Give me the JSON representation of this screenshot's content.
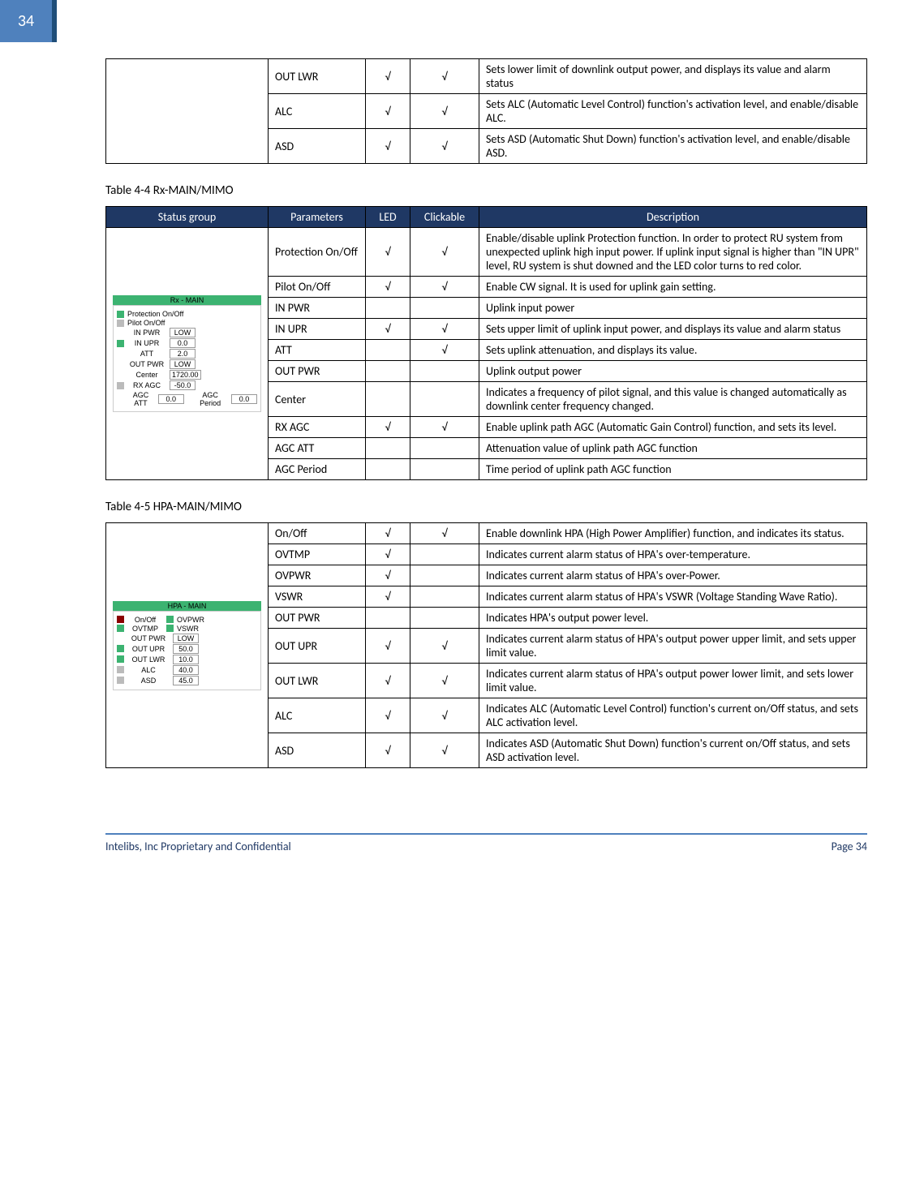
{
  "page_number": "34",
  "top_table_rows": [
    {
      "param": "OUT LWR",
      "led": "√",
      "click": "√",
      "desc": "Sets lower limit of downlink output power, and displays its value and alarm status"
    },
    {
      "param": "ALC",
      "led": "√",
      "click": "√",
      "desc": "Sets ALC (Automatic Level Control) function's activation level, and enable/disable ALC."
    },
    {
      "param": "ASD",
      "led": "√",
      "click": "√",
      "desc": "Sets ASD (Automatic Shut Down) function's activation level, and enable/disable ASD."
    }
  ],
  "caption_rx": "Table 4-4 Rx-MAIN/MIMO",
  "header": {
    "status": "Status group",
    "param": "Parameters",
    "led": "LED",
    "click": "Clickable",
    "desc": "Description"
  },
  "rx_widget": {
    "title": "Rx - MAIN",
    "rows": [
      {
        "led": "led-green",
        "label": "Protection On/Off"
      },
      {
        "led": "led-gray",
        "label": "Pilot On/Off"
      }
    ],
    "value_rows": [
      {
        "label": "IN PWR",
        "val": "LOW"
      },
      {
        "label": "IN UPR",
        "val": "0.0",
        "led": "led-green"
      },
      {
        "label": "ATT",
        "val": "2.0"
      },
      {
        "label": "OUT PWR",
        "val": "LOW"
      },
      {
        "label": "Center",
        "val": "1720.00"
      }
    ],
    "rx_agc": {
      "led": "led-gray",
      "label": "RX AGC",
      "val": "-50.0"
    },
    "agc_row": {
      "label1": "AGC ATT",
      "val1": "0.0",
      "label2": "AGC Period",
      "val2": "0.0"
    }
  },
  "rx_rows": [
    {
      "param": "Protection On/Off",
      "led": "√",
      "click": "√",
      "desc": "Enable/disable uplink Protection function. In order to protect RU system from unexpected uplink high input power. If uplink input signal is higher than \"IN UPR\" level, RU system is shut downed and the LED color turns to red color."
    },
    {
      "param": "Pilot On/Off",
      "led": "√",
      "click": "√",
      "desc": "Enable CW signal. It is used for uplink gain setting."
    },
    {
      "param": "IN PWR",
      "led": "",
      "click": "",
      "desc": "Uplink input power"
    },
    {
      "param": "IN UPR",
      "led": "√",
      "click": "√",
      "desc": "Sets upper limit of uplink input power, and displays its value and alarm status"
    },
    {
      "param": "ATT",
      "led": "",
      "click": "√",
      "desc": "Sets uplink attenuation, and displays its value."
    },
    {
      "param": "OUT PWR",
      "led": "",
      "click": "",
      "desc": "Uplink output power"
    },
    {
      "param": "Center",
      "led": "",
      "click": "",
      "desc": "Indicates a frequency of pilot signal, and this value is changed automatically as downlink center frequency changed."
    },
    {
      "param": "RX AGC",
      "led": "√",
      "click": "√",
      "desc": "Enable uplink path AGC (Automatic Gain Control) function, and sets its level."
    },
    {
      "param": "AGC ATT",
      "led": "",
      "click": "",
      "desc": "Attenuation value of uplink path AGC function"
    },
    {
      "param": "AGC Period",
      "led": "",
      "click": "",
      "desc": "Time period of uplink path AGC function"
    }
  ],
  "caption_hpa": "Table 4-5 HPA-MAIN/MIMO",
  "hpa_widget": {
    "title": "HPA - MAIN",
    "pair_rows": [
      {
        "led1": "led-darkred",
        "label1": "On/Off",
        "led2": "led-green",
        "label2": "OVPWR"
      },
      {
        "led1": "led-green",
        "label1": "OVTMP",
        "led2": "led-green",
        "label2": "VSWR"
      }
    ],
    "value_rows": [
      {
        "led": "",
        "label": "OUT PWR",
        "val": "LOW"
      },
      {
        "led": "led-green",
        "label": "OUT UPR",
        "val": "50.0"
      },
      {
        "led": "led-green",
        "label": "OUT LWR",
        "val": "10.0"
      },
      {
        "led": "led-gray",
        "label": "ALC",
        "val": "40.0"
      },
      {
        "led": "led-gray",
        "label": "ASD",
        "val": "45.0"
      }
    ]
  },
  "hpa_rows": [
    {
      "param": "On/Off",
      "led": "√",
      "click": "√",
      "desc": "Enable downlink HPA (High Power Amplifier) function, and indicates its status."
    },
    {
      "param": "OVTMP",
      "led": "√",
      "click": "",
      "desc": "Indicates current alarm status of HPA's over-temperature."
    },
    {
      "param": "OVPWR",
      "led": "√",
      "click": "",
      "desc": "Indicates current alarm status of HPA's over-Power."
    },
    {
      "param": "VSWR",
      "led": "√",
      "click": "",
      "desc": "Indicates current alarm status of HPA's VSWR (Voltage Standing Wave Ratio)."
    },
    {
      "param": "OUT PWR",
      "led": "",
      "click": "",
      "desc": "Indicates HPA's output power level."
    },
    {
      "param": "OUT UPR",
      "led": "√",
      "click": "√",
      "desc": "Indicates current alarm status of HPA's output power upper limit, and sets upper limit value."
    },
    {
      "param": "OUT LWR",
      "led": "√",
      "click": "√",
      "desc": "Indicates current alarm status of HPA's output power lower limit, and sets lower limit value."
    },
    {
      "param": "ALC",
      "led": "√",
      "click": "√",
      "desc": "Indicates ALC (Automatic Level Control) function's current on/Off status, and sets ALC activation level."
    },
    {
      "param": "ASD",
      "led": "√",
      "click": "√",
      "desc": "Indicates ASD (Automatic Shut Down) function's current on/Off status, and sets ASD activation level."
    }
  ],
  "footer": {
    "left": "Intelibs, Inc Proprietary and Confidential",
    "right": "Page 34"
  }
}
